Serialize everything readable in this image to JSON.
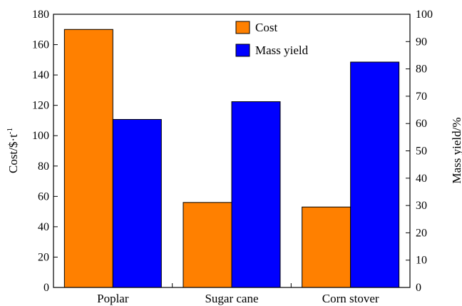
{
  "chart_data": {
    "type": "bar",
    "categories": [
      "Poplar",
      "Sugar cane",
      "Corn stover"
    ],
    "series": [
      {
        "name": "Cost",
        "axis": "left",
        "color": "#ff8000",
        "values": [
          170,
          56,
          53
        ]
      },
      {
        "name": "Mass yield",
        "axis": "right",
        "color": "#0000ff",
        "values": [
          61.5,
          68,
          82.5
        ]
      }
    ],
    "ylabel_left_main": "Cost/$·t",
    "ylabel_left_sup": "-1",
    "ylabel_right": "Mass yield/%",
    "ylim_left": [
      0,
      180
    ],
    "ylim_right": [
      0,
      100
    ],
    "yticks_left": [
      "0",
      "20",
      "40",
      "60",
      "80",
      "100",
      "120",
      "140",
      "160",
      "180"
    ],
    "yticks_right": [
      "0",
      "10",
      "20",
      "30",
      "40",
      "50",
      "60",
      "70",
      "80",
      "90",
      "100"
    ],
    "legend_position": "top-center",
    "grid": false
  }
}
